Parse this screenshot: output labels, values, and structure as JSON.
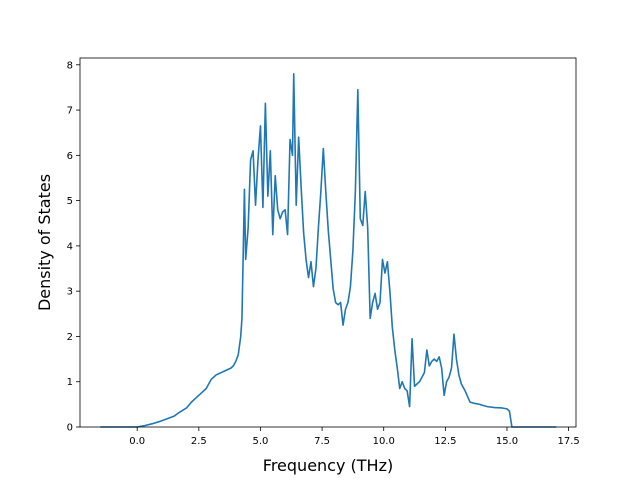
{
  "chart_data": {
    "type": "line",
    "title": "",
    "xlabel": "Frequency (THz)",
    "ylabel": "Density of States",
    "xlim": [
      -2.32,
      17.8
    ],
    "ylim": [
      0,
      8.15
    ],
    "xticks": [
      0.0,
      2.5,
      5.0,
      7.5,
      10.0,
      12.5,
      15.0,
      17.5
    ],
    "xtick_labels": [
      "0.0",
      "2.5",
      "5.0",
      "7.5",
      "10.0",
      "12.5",
      "15.0",
      "17.5"
    ],
    "yticks": [
      0,
      1,
      2,
      3,
      4,
      5,
      6,
      7,
      8
    ],
    "ytick_labels": [
      "0",
      "1",
      "2",
      "3",
      "4",
      "5",
      "6",
      "7",
      "8"
    ],
    "grid": false,
    "legend": "none",
    "color": "#1f77b4",
    "series": [
      {
        "x": [
          -1.5,
          -0.5,
          0.0,
          0.3,
          0.6,
          0.9,
          1.2,
          1.5,
          1.7,
          2.0,
          2.2,
          2.4,
          2.6,
          2.8,
          2.9,
          3.0,
          3.2,
          3.4,
          3.6,
          3.8,
          3.9,
          4.0,
          4.1,
          4.15,
          4.2,
          4.25,
          4.35,
          4.4,
          4.5,
          4.6,
          4.7,
          4.8,
          4.9,
          5.0,
          5.1,
          5.2,
          5.3,
          5.4,
          5.5,
          5.6,
          5.7,
          5.8,
          5.9,
          6.0,
          6.1,
          6.2,
          6.3,
          6.35,
          6.45,
          6.55,
          6.65,
          6.75,
          6.85,
          6.95,
          7.05,
          7.15,
          7.25,
          7.35,
          7.45,
          7.55,
          7.65,
          7.75,
          7.85,
          7.95,
          8.05,
          8.15,
          8.25,
          8.35,
          8.45,
          8.55,
          8.65,
          8.75,
          8.85,
          8.95,
          9.05,
          9.15,
          9.25,
          9.35,
          9.45,
          9.55,
          9.65,
          9.75,
          9.85,
          9.95,
          10.05,
          10.15,
          10.25,
          10.35,
          10.45,
          10.55,
          10.65,
          10.75,
          10.85,
          10.95,
          11.05,
          11.15,
          11.25,
          11.35,
          11.45,
          11.55,
          11.65,
          11.75,
          11.85,
          11.95,
          12.05,
          12.15,
          12.25,
          12.35,
          12.45,
          12.55,
          12.65,
          12.75,
          12.85,
          12.95,
          13.05,
          13.15,
          13.3,
          13.5,
          13.7,
          13.9,
          14.0,
          14.2,
          14.5,
          14.8,
          15.0,
          15.1,
          15.2,
          15.25,
          15.3,
          15.4,
          15.6,
          16.0,
          17.0
        ],
        "y": [
          0.0,
          0.0,
          0.0,
          0.03,
          0.07,
          0.12,
          0.18,
          0.24,
          0.32,
          0.42,
          0.55,
          0.65,
          0.75,
          0.85,
          0.95,
          1.05,
          1.15,
          1.2,
          1.25,
          1.3,
          1.35,
          1.45,
          1.6,
          1.8,
          2.0,
          2.4,
          5.25,
          3.7,
          4.4,
          5.9,
          6.1,
          4.9,
          5.9,
          6.65,
          4.85,
          7.15,
          5.1,
          6.1,
          4.25,
          5.55,
          4.8,
          4.6,
          4.75,
          4.8,
          4.25,
          6.35,
          6.0,
          7.8,
          4.9,
          6.4,
          5.3,
          4.3,
          3.7,
          3.3,
          3.65,
          3.1,
          3.5,
          4.4,
          5.2,
          6.15,
          5.2,
          4.35,
          3.7,
          3.05,
          2.75,
          2.7,
          2.75,
          2.25,
          2.6,
          2.75,
          3.1,
          3.9,
          5.2,
          7.45,
          4.6,
          4.45,
          5.2,
          4.4,
          2.4,
          2.75,
          2.95,
          2.6,
          2.75,
          3.7,
          3.4,
          3.65,
          3.0,
          2.2,
          1.7,
          1.3,
          0.85,
          1.0,
          0.85,
          0.8,
          0.45,
          1.95,
          0.9,
          0.95,
          1.0,
          1.1,
          1.2,
          1.7,
          1.35,
          1.45,
          1.5,
          1.45,
          1.55,
          1.3,
          0.7,
          1.0,
          1.1,
          1.3,
          2.05,
          1.5,
          1.15,
          0.95,
          0.8,
          0.55,
          0.52,
          0.5,
          0.48,
          0.45,
          0.43,
          0.42,
          0.4,
          0.35,
          0.0,
          0.0,
          0.0,
          0.0,
          0.0,
          0.0,
          0.0
        ]
      }
    ]
  }
}
